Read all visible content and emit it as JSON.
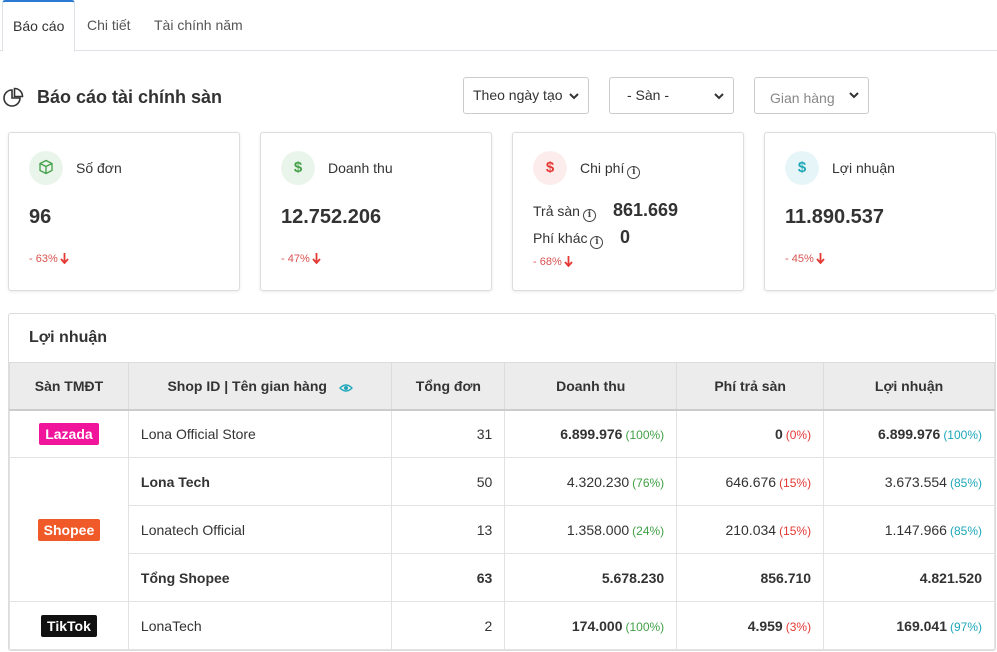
{
  "tabs": [
    "Báo cáo",
    "Chi tiết",
    "Tài chính năm"
  ],
  "header": {
    "title": "Báo cáo tài chính sàn",
    "filter_date": "Theo ngày tạo",
    "filter_platform": "- Sàn -",
    "filter_shop_placeholder": "Gian hàng"
  },
  "cards": {
    "orders": {
      "title": "Số đơn",
      "value": "96",
      "change": "- 63%"
    },
    "revenue": {
      "title": "Doanh thu",
      "value": "12.752.206",
      "change": "- 47%"
    },
    "cost": {
      "title": "Chi phí",
      "platform_fee_label": "Trả sàn",
      "platform_fee": "861.669",
      "other_fee_label": "Phí khác",
      "other_fee": "0",
      "change": "- 68%"
    },
    "profit": {
      "title": "Lợi nhuận",
      "value": "11.890.537",
      "change": "- 45%"
    }
  },
  "table": {
    "title": "Lợi nhuận",
    "headers": [
      "Sàn TMĐT",
      "Shop ID | Tên gian hàng",
      "Tổng đơn",
      "Doanh thu",
      "Phí trả sàn",
      "Lợi nhuận"
    ],
    "platforms": {
      "lazada": "Lazada",
      "shopee": "Shopee",
      "tiktok": "TikTok"
    },
    "rows": [
      {
        "shop": "Lona Official Store",
        "orders": "31",
        "revenue": "6.899.976",
        "revenue_pct": "(100%)",
        "fee": "0",
        "fee_pct": "(0%)",
        "profit": "6.899.976",
        "profit_pct": "(100%)"
      },
      {
        "shop": "Lona Tech",
        "orders": "50",
        "revenue": "4.320.230",
        "revenue_pct": "(76%)",
        "fee": "646.676",
        "fee_pct": "(15%)",
        "profit": "3.673.554",
        "profit_pct": "(85%)"
      },
      {
        "shop": "Lonatech Official",
        "orders": "13",
        "revenue": "1.358.000",
        "revenue_pct": "(24%)",
        "fee": "210.034",
        "fee_pct": "(15%)",
        "profit": "1.147.966",
        "profit_pct": "(85%)"
      },
      {
        "shop": "Tổng Shopee",
        "orders": "63",
        "revenue": "5.678.230",
        "fee": "856.710",
        "profit": "4.821.520"
      },
      {
        "shop": "LonaTech",
        "orders": "2",
        "revenue": "174.000",
        "revenue_pct": "(100%)",
        "fee": "4.959",
        "fee_pct": "(3%)",
        "profit": "169.041",
        "profit_pct": "(97%)"
      }
    ]
  },
  "colors": {
    "lazada": "#f0159a",
    "shopee": "#f05a28",
    "tiktok": "#111111",
    "accent": "#2a7ad3",
    "down": "#e53935"
  },
  "icons": {
    "title": "pie-chart-icon",
    "orders": "box-icon",
    "revenue": "dollar-icon",
    "cost": "dollar-icon",
    "profit": "dollar-icon"
  }
}
